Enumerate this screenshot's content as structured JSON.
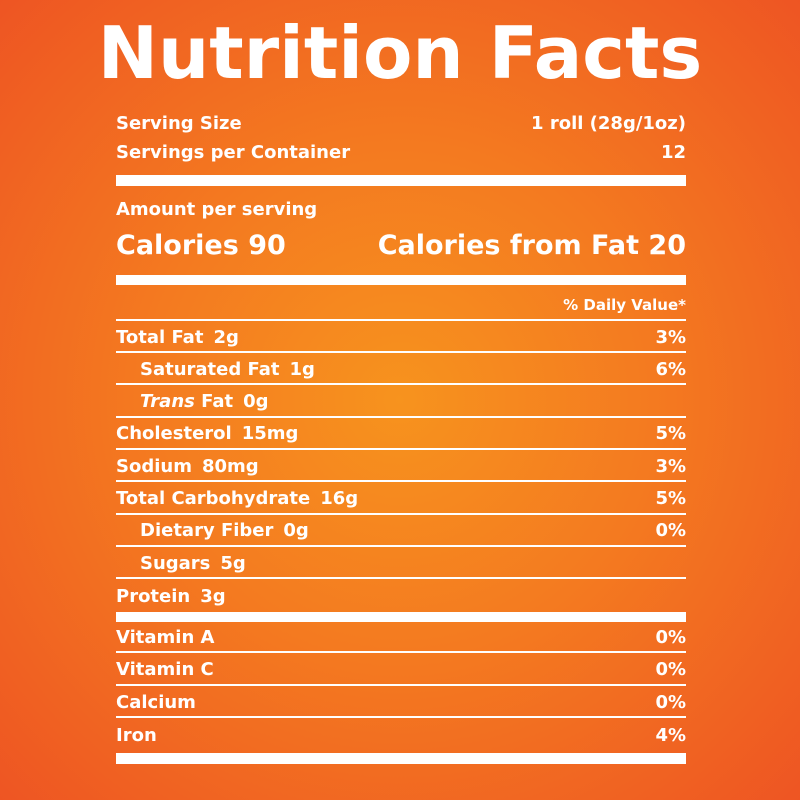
{
  "title": "Nutrition Facts",
  "serving": {
    "size_label": "Serving Size",
    "size_value": "1 roll (28g/1oz)",
    "per_container_label": "Servings per Container",
    "per_container_value": "12"
  },
  "amount_label": "Amount per serving",
  "calories": {
    "label": "Calories",
    "value": "90",
    "fat_label": "Calories from Fat",
    "fat_value": "20"
  },
  "dv_header": "% Daily Value*",
  "nutrients": [
    {
      "name": "Total Fat",
      "amount": "2g",
      "dv": "3%"
    },
    {
      "name": "Saturated Fat",
      "amount": "1g",
      "dv": "6%"
    },
    {
      "name_italic": "Trans",
      "name": "Fat",
      "amount": "0g",
      "dv": ""
    },
    {
      "name": "Cholesterol",
      "amount": "15mg",
      "dv": "5%"
    },
    {
      "name": "Sodium",
      "amount": "80mg",
      "dv": "3%"
    },
    {
      "name": "Total Carbohydrate",
      "amount": "16g",
      "dv": "5%"
    },
    {
      "name": "Dietary Fiber",
      "amount": "0g",
      "dv": "0%"
    },
    {
      "name": "Sugars",
      "amount": "5g",
      "dv": ""
    },
    {
      "name": "Protein",
      "amount": "3g",
      "dv": ""
    }
  ],
  "vitamins": [
    {
      "name": "Vitamin A",
      "dv": "0%"
    },
    {
      "name": "Vitamin C",
      "dv": "0%"
    },
    {
      "name": "Calcium",
      "dv": "0%"
    },
    {
      "name": "Iron",
      "dv": "4%"
    }
  ],
  "colors": {
    "background_center": "#f7931e",
    "background_edge": "#ee5523",
    "text": "#ffffff"
  }
}
